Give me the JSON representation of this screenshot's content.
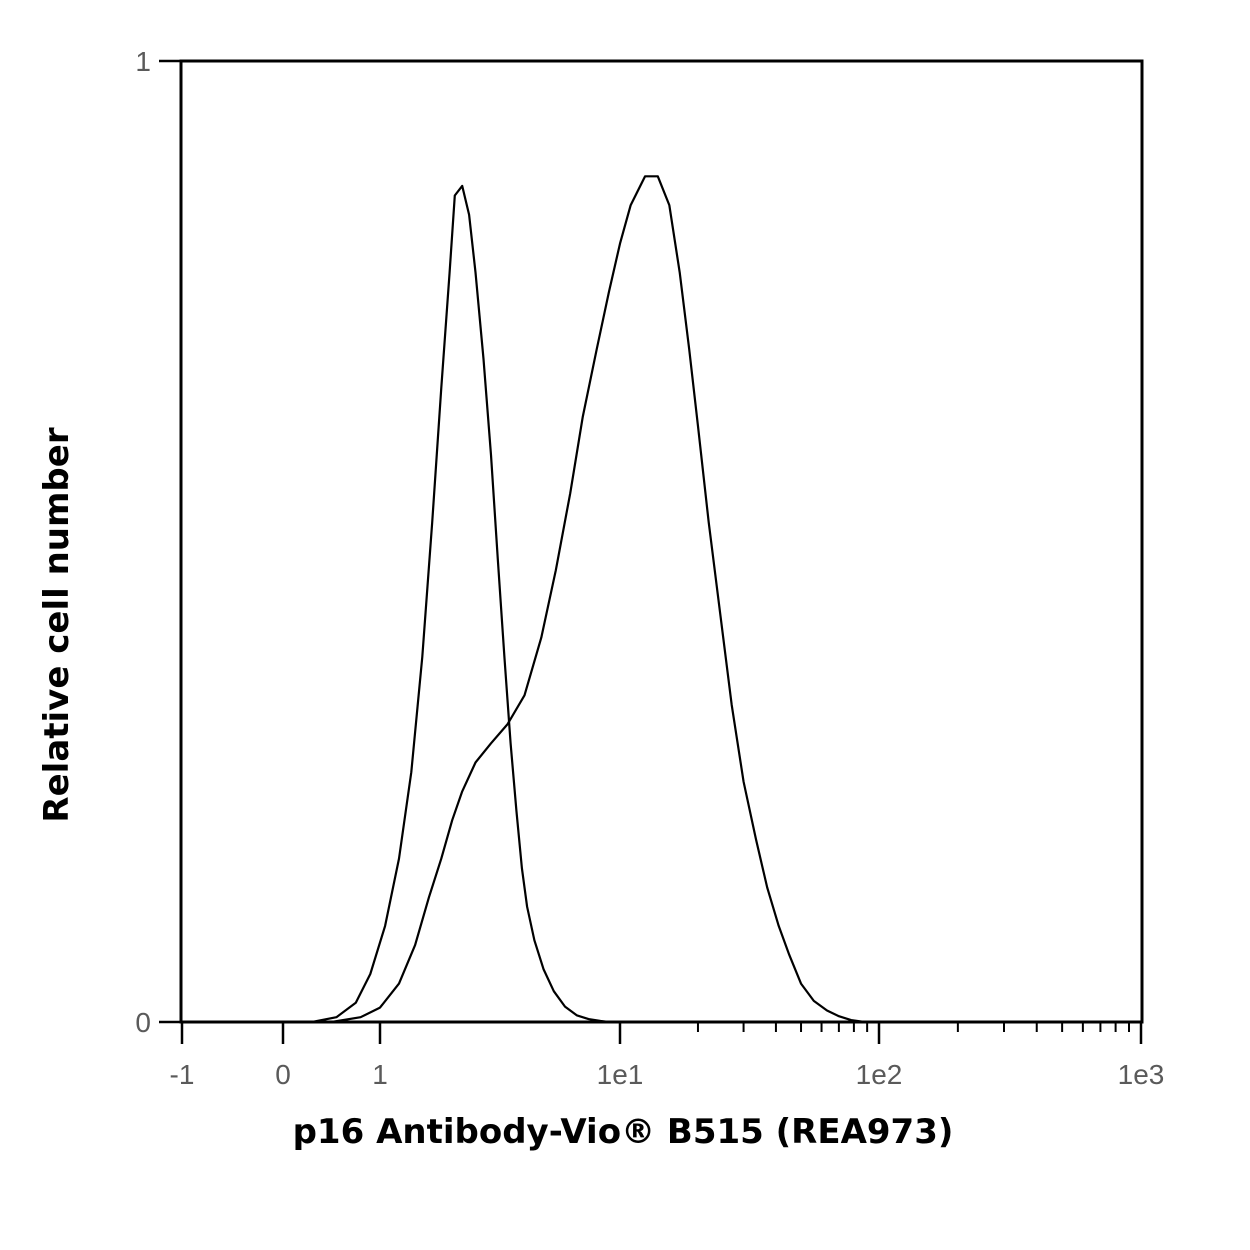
{
  "chart_data": {
    "type": "line",
    "title": "",
    "xlabel": "p16 Antibody-Vio® B515 (REA973)",
    "ylabel": "Relative cell number",
    "x_scale": "biexponential (hlog)",
    "x_ticks": [
      "-1",
      "0",
      "1",
      "1e1",
      "1e2",
      "1e3"
    ],
    "x_tick_values": [
      -1,
      0,
      1,
      10,
      100,
      1000
    ],
    "y_ticks": [
      "0",
      "1"
    ],
    "y_tick_values": [
      0,
      1
    ],
    "ylim": [
      0,
      1
    ],
    "grid": false,
    "legend": "none",
    "line_color": "#000000",
    "series": [
      {
        "x": [
          0.3,
          0.55,
          0.75,
          0.9,
          1.05,
          1.2,
          1.35,
          1.5,
          1.65,
          1.8,
          1.95,
          2.05,
          2.2,
          2.35,
          2.5,
          2.7,
          2.9,
          3.1,
          3.3,
          3.5,
          3.7,
          3.9,
          4.1,
          4.4,
          4.8,
          5.3,
          5.9,
          6.6,
          7.4,
          8.3,
          9.0
        ],
        "y": [
          0.0,
          0.005,
          0.02,
          0.05,
          0.1,
          0.17,
          0.26,
          0.38,
          0.52,
          0.66,
          0.78,
          0.86,
          0.87,
          0.84,
          0.78,
          0.69,
          0.59,
          0.48,
          0.38,
          0.29,
          0.22,
          0.16,
          0.12,
          0.085,
          0.055,
          0.032,
          0.016,
          0.007,
          0.003,
          0.001,
          0.0
        ]
      },
      {
        "x": [
          0.5,
          0.8,
          1.0,
          1.2,
          1.4,
          1.6,
          1.8,
          2.0,
          2.2,
          2.5,
          2.9,
          3.4,
          4.0,
          4.7,
          5.4,
          6.2,
          7.0,
          8.0,
          9.0,
          10.0,
          11.0,
          12.5,
          14.0,
          15.5,
          17.0,
          18.5,
          20.0,
          22.0,
          24.5,
          27.0,
          30.0,
          33.5,
          37.0,
          41.0,
          45.0,
          50.0,
          56.0,
          63.0,
          70.0,
          78.0,
          88.0
        ],
        "y": [
          0.0,
          0.005,
          0.015,
          0.04,
          0.08,
          0.13,
          0.17,
          0.21,
          0.24,
          0.27,
          0.29,
          0.31,
          0.34,
          0.4,
          0.47,
          0.55,
          0.63,
          0.7,
          0.76,
          0.81,
          0.85,
          0.88,
          0.88,
          0.85,
          0.78,
          0.7,
          0.62,
          0.52,
          0.42,
          0.33,
          0.25,
          0.19,
          0.14,
          0.1,
          0.07,
          0.04,
          0.022,
          0.012,
          0.006,
          0.002,
          0.0
        ]
      }
    ]
  }
}
